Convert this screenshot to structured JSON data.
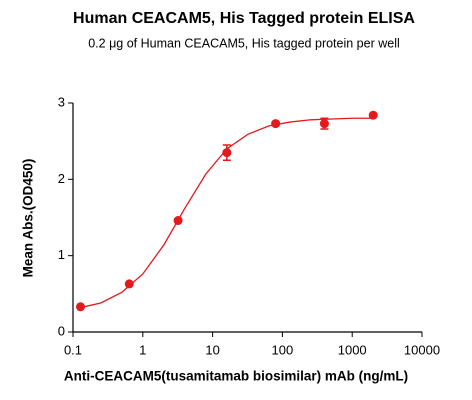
{
  "chart_data": {
    "type": "scatter",
    "title": "Human CEACAM5, His Tagged protein ELISA",
    "subtitle": "0.2 μg of Human CEACAM5, His tagged protein per well",
    "x_label": "Anti-CEACAM5(tusamitamab biosimilar) mAb (ng/mL)",
    "y_label": "Mean Abs.(OD450)",
    "xscale": "log",
    "xlim": [
      0.1,
      10000
    ],
    "xticks": [
      0.1,
      1,
      10,
      100,
      1000,
      10000
    ],
    "ylim": [
      0,
      3
    ],
    "yticks": [
      0,
      1,
      2,
      3
    ],
    "color": "#e3191c",
    "x": [
      0.128,
      0.64,
      3.2,
      16,
      80,
      400,
      2000
    ],
    "values": [
      0.33,
      0.63,
      1.46,
      2.35,
      2.73,
      2.73,
      2.84
    ],
    "errors": [
      null,
      null,
      null,
      0.1,
      null,
      0.07,
      null
    ],
    "fit": {
      "x": [
        0.128,
        0.25,
        0.5,
        1,
        2,
        4,
        8,
        16,
        32,
        64,
        128,
        256,
        512,
        1000,
        2000
      ],
      "values": [
        0.32,
        0.38,
        0.52,
        0.76,
        1.14,
        1.62,
        2.07,
        2.4,
        2.59,
        2.7,
        2.75,
        2.78,
        2.79,
        2.8,
        2.8
      ]
    }
  }
}
